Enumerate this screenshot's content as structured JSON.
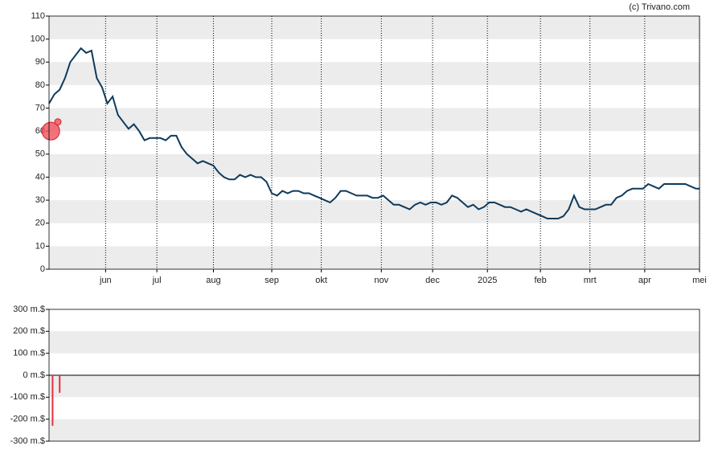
{
  "credit": "(c) Trivano.com",
  "chart_data": [
    {
      "type": "line",
      "x": [
        0,
        3,
        6,
        9,
        12,
        15,
        18,
        21,
        24,
        27,
        30,
        33,
        36,
        39,
        42,
        45,
        48,
        51,
        54,
        57,
        60,
        63,
        66,
        69,
        72,
        75,
        78,
        81,
        84,
        87,
        90,
        93,
        96,
        99,
        102,
        105,
        108,
        111,
        114,
        117,
        120,
        123,
        126,
        129,
        132,
        135,
        138,
        141,
        144,
        147,
        150,
        153,
        156,
        159,
        162,
        165,
        168,
        171,
        174,
        177,
        180,
        183,
        186,
        189,
        192,
        195,
        198,
        201,
        204,
        207,
        210,
        213,
        216,
        219,
        222,
        225,
        228,
        231,
        234,
        237,
        240,
        243,
        246,
        249,
        252,
        255,
        258,
        261,
        264,
        267,
        270,
        273,
        276,
        279,
        282,
        285,
        288,
        291,
        294,
        297,
        300,
        303,
        306,
        309,
        312,
        315,
        318,
        321,
        324,
        327,
        330,
        333,
        336,
        339,
        342,
        345,
        348,
        351,
        354,
        357,
        360,
        363,
        366,
        368
      ],
      "series": [
        {
          "color": "#0e3a5c",
          "values": [
            72,
            76,
            78,
            83,
            90,
            93,
            96,
            94,
            95,
            83,
            79,
            72,
            75,
            67,
            64,
            61,
            63,
            60,
            56,
            57,
            57,
            57,
            56,
            58,
            58,
            53,
            50,
            48,
            46,
            47,
            46,
            45,
            42,
            40,
            39,
            39,
            41,
            40,
            41,
            40,
            40,
            38,
            33,
            32,
            34,
            33,
            34,
            34,
            33,
            33,
            32,
            31,
            30,
            29,
            31,
            34,
            34,
            33,
            32,
            32,
            32,
            31,
            31,
            32,
            30,
            28,
            28,
            27,
            26,
            28,
            29,
            28,
            29,
            29,
            28,
            29,
            32,
            31,
            29,
            27,
            28,
            26,
            27,
            29,
            29,
            28,
            27,
            27,
            26,
            25,
            26,
            25,
            24,
            23,
            22,
            22,
            22,
            23,
            26,
            32,
            27,
            26,
            26,
            26,
            27,
            28,
            28,
            31,
            32,
            34,
            35,
            35,
            35,
            37,
            36,
            35,
            37,
            37,
            37,
            37,
            37,
            36,
            35,
            35
          ]
        }
      ],
      "markers": {
        "color": "#f0505a",
        "x": [
          1,
          5
        ],
        "y": [
          60,
          64
        ],
        "sizes": [
          11,
          4
        ]
      },
      "xlim": [
        0,
        368
      ],
      "xticks": [
        {
          "value": 32,
          "label": "jun"
        },
        {
          "value": 61,
          "label": "jul"
        },
        {
          "value": 93,
          "label": "aug"
        },
        {
          "value": 126,
          "label": "sep"
        },
        {
          "value": 154,
          "label": "okt"
        },
        {
          "value": 188,
          "label": "nov"
        },
        {
          "value": 217,
          "label": "dec"
        },
        {
          "value": 248,
          "label": "2025"
        },
        {
          "value": 278,
          "label": "feb"
        },
        {
          "value": 306,
          "label": "mrt"
        },
        {
          "value": 337,
          "label": "apr"
        },
        {
          "value": 368,
          "label": "mei"
        }
      ],
      "ylim": [
        0,
        110
      ],
      "yticks": [
        0,
        10,
        20,
        30,
        40,
        50,
        60,
        70,
        80,
        90,
        100,
        110
      ],
      "grid": "bands"
    },
    {
      "type": "bar",
      "x": [
        2,
        6,
        16,
        229
      ],
      "values": [
        -230,
        -80,
        -2,
        -1
      ],
      "color": "#e8303c",
      "xlim": [
        0,
        368
      ],
      "ylim": [
        -300,
        300
      ],
      "yticks": [
        {
          "value": 300,
          "label": "300 m.$"
        },
        {
          "value": 200,
          "label": "200 m.$"
        },
        {
          "value": 100,
          "label": "100 m.$"
        },
        {
          "value": 0,
          "label": "0 m.$"
        },
        {
          "value": -100,
          "label": "-100 m.$"
        },
        {
          "value": -200,
          "label": "-200 m.$"
        },
        {
          "value": -300,
          "label": "-300 m.$"
        }
      ],
      "grid": "bands"
    }
  ]
}
